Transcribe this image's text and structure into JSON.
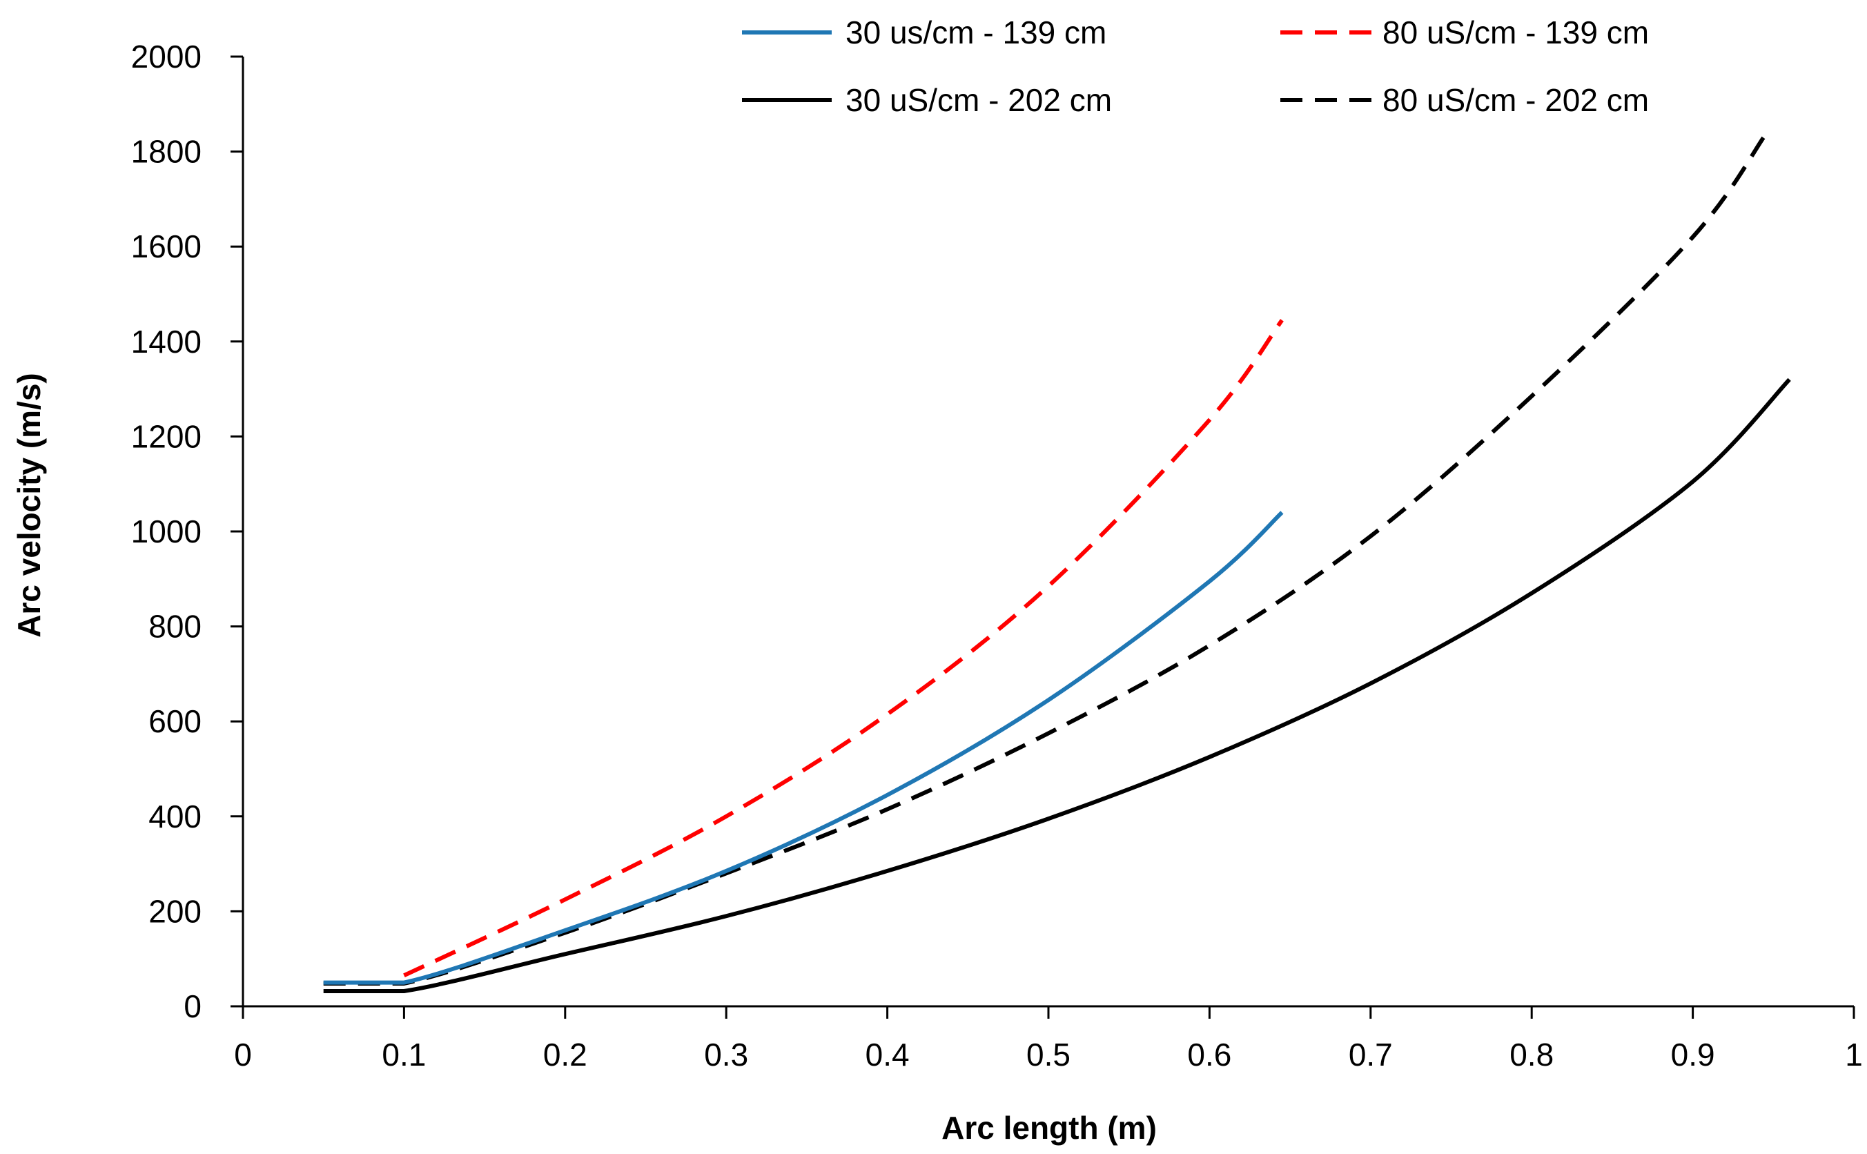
{
  "chart_data": {
    "type": "line",
    "title": "",
    "xlabel": "Arc length (m)",
    "ylabel": "Arc velocity  (m/s)",
    "xlim": [
      0,
      1
    ],
    "ylim": [
      0,
      2000
    ],
    "x_ticks": [
      0,
      0.1,
      0.2,
      0.3,
      0.4,
      0.5,
      0.6,
      0.7,
      0.8,
      0.9,
      1
    ],
    "x_tick_labels": [
      "0",
      "0.1",
      "0.2",
      "0.3",
      "0.4",
      "0.5",
      "0.6",
      "0.7",
      "0.8",
      "0.9",
      "1"
    ],
    "y_ticks": [
      0,
      200,
      400,
      600,
      800,
      1000,
      1200,
      1400,
      1600,
      1800,
      2000
    ],
    "y_tick_labels": [
      "0",
      "200",
      "400",
      "600",
      "800",
      "1000",
      "1200",
      "1400",
      "1600",
      "1800",
      "2000"
    ],
    "grid": false,
    "legend_position": "top",
    "series": [
      {
        "name": "30 us/cm - 139 cm",
        "color": "#1f77b4",
        "dash": "solid",
        "x": [
          0.05,
          0.1,
          0.2,
          0.3,
          0.4,
          0.5,
          0.6,
          0.645
        ],
        "y": [
          50,
          50,
          160,
          285,
          445,
          645,
          895,
          1040
        ]
      },
      {
        "name": "80 uS/cm - 139 cm",
        "color": "#ff0000",
        "dash": "dashed",
        "x": [
          0.1,
          0.2,
          0.3,
          0.4,
          0.5,
          0.6,
          0.645
        ],
        "y": [
          65,
          225,
          400,
          615,
          885,
          1235,
          1445
        ]
      },
      {
        "name": "30 uS/cm - 202 cm",
        "color": "#000000",
        "dash": "solid",
        "x": [
          0.05,
          0.1,
          0.2,
          0.3,
          0.4,
          0.5,
          0.6,
          0.7,
          0.8,
          0.9,
          0.96
        ],
        "y": [
          32,
          32,
          110,
          190,
          285,
          395,
          525,
          680,
          870,
          1105,
          1320
        ]
      },
      {
        "name": "80 uS/cm - 202 cm",
        "color": "#000000",
        "dash": "dashed",
        "x": [
          0.05,
          0.1,
          0.2,
          0.3,
          0.4,
          0.5,
          0.6,
          0.7,
          0.8,
          0.9,
          0.945
        ],
        "y": [
          48,
          48,
          155,
          280,
          415,
          575,
          760,
          990,
          1285,
          1620,
          1835
        ]
      }
    ]
  }
}
